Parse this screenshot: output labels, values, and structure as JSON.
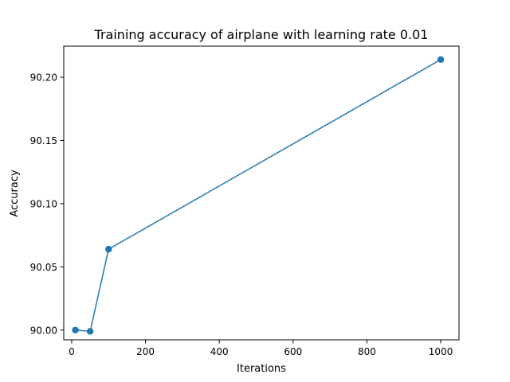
{
  "chart_data": {
    "type": "line",
    "title": "Training accuracy of airplane with learning rate 0.01",
    "xlabel": "Iterations",
    "ylabel": "Accuracy",
    "xlim": [
      -21.5,
      1049.5
    ],
    "ylim": [
      89.9923,
      90.2246
    ],
    "x_ticks": [
      0,
      200,
      400,
      600,
      800,
      1000
    ],
    "x_tick_labels": [
      "0",
      "200",
      "400",
      "600",
      "800",
      "1000"
    ],
    "y_ticks": [
      90.0,
      90.05,
      90.1,
      90.15,
      90.2
    ],
    "y_tick_labels": [
      "90.00",
      "90.05",
      "90.10",
      "90.15",
      "90.20"
    ],
    "grid": false,
    "series": [
      {
        "color": "#1f77b4",
        "marker": "circle",
        "x": [
          10,
          50,
          100,
          1000
        ],
        "y": [
          90.0,
          89.999,
          90.064,
          90.214
        ]
      }
    ]
  }
}
